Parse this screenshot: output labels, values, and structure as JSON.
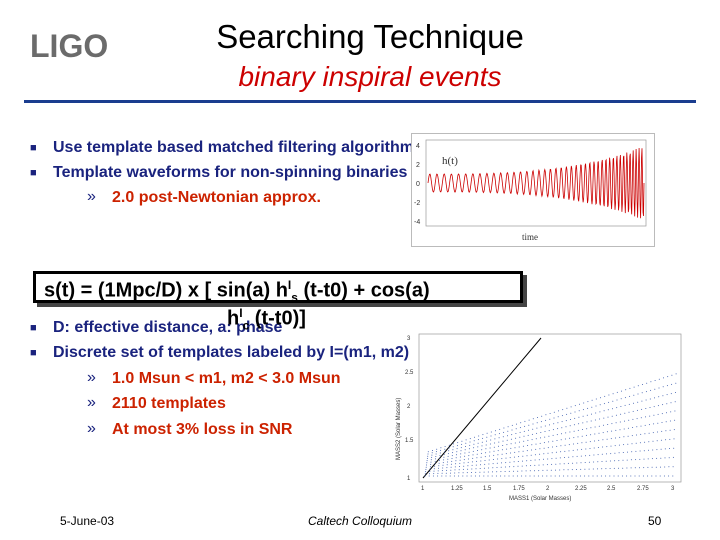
{
  "logo": {
    "text": "LIGO"
  },
  "title": "Searching Technique",
  "subtitle": "binary inspiral events",
  "bullets": [
    "Use template based matched filtering algorithm",
    "Template waveforms for non-spinning binaries"
  ],
  "sub_bullet_1": "2.0 post-Newtonian approx.",
  "formula": {
    "line1_a": "s(t) = (1Mpc/D) x [ sin(a) h",
    "sup1": "I",
    "sub1": "s",
    "line1_b": " (t-t0) + cos(a)",
    "line2_a": "h",
    "sup2": "I",
    "sub2": "c",
    "line2_b": " (t-t0)]"
  },
  "bullets2": [
    "D: effective distance, a: phase",
    "Discrete set of templates labeled by I=(m1, m2)"
  ],
  "sub_bullets_2": [
    "1.0 Msun < m1, m2 < 3.0 Msun",
    "2110 templates",
    "At most 3% loss in SNR"
  ],
  "waveform_plot": {
    "label": "h(t)",
    "xlabel": "time",
    "yticks": [
      "4",
      "2",
      "0",
      "-2",
      "-4"
    ]
  },
  "template_plot": {
    "ylabel": "MASS2 (Solar Masses)",
    "xlabel": "MASS1 (Solar Masses)",
    "yticks": [
      "3",
      "2.5",
      "2",
      "1.5",
      "1"
    ],
    "xticks": [
      "1",
      "1.25",
      "1.5",
      "1.75",
      "2",
      "2.25",
      "2.5",
      "2.75",
      "3"
    ]
  },
  "footer": {
    "date": "5-June-03",
    "event": "Caltech Colloquium",
    "page": "50"
  },
  "colors": {
    "bullet_text": "#1a237e",
    "sub_bullet_text": "#cc2200",
    "subtitle": "#cc0000",
    "rule": "#1a3d8f"
  }
}
